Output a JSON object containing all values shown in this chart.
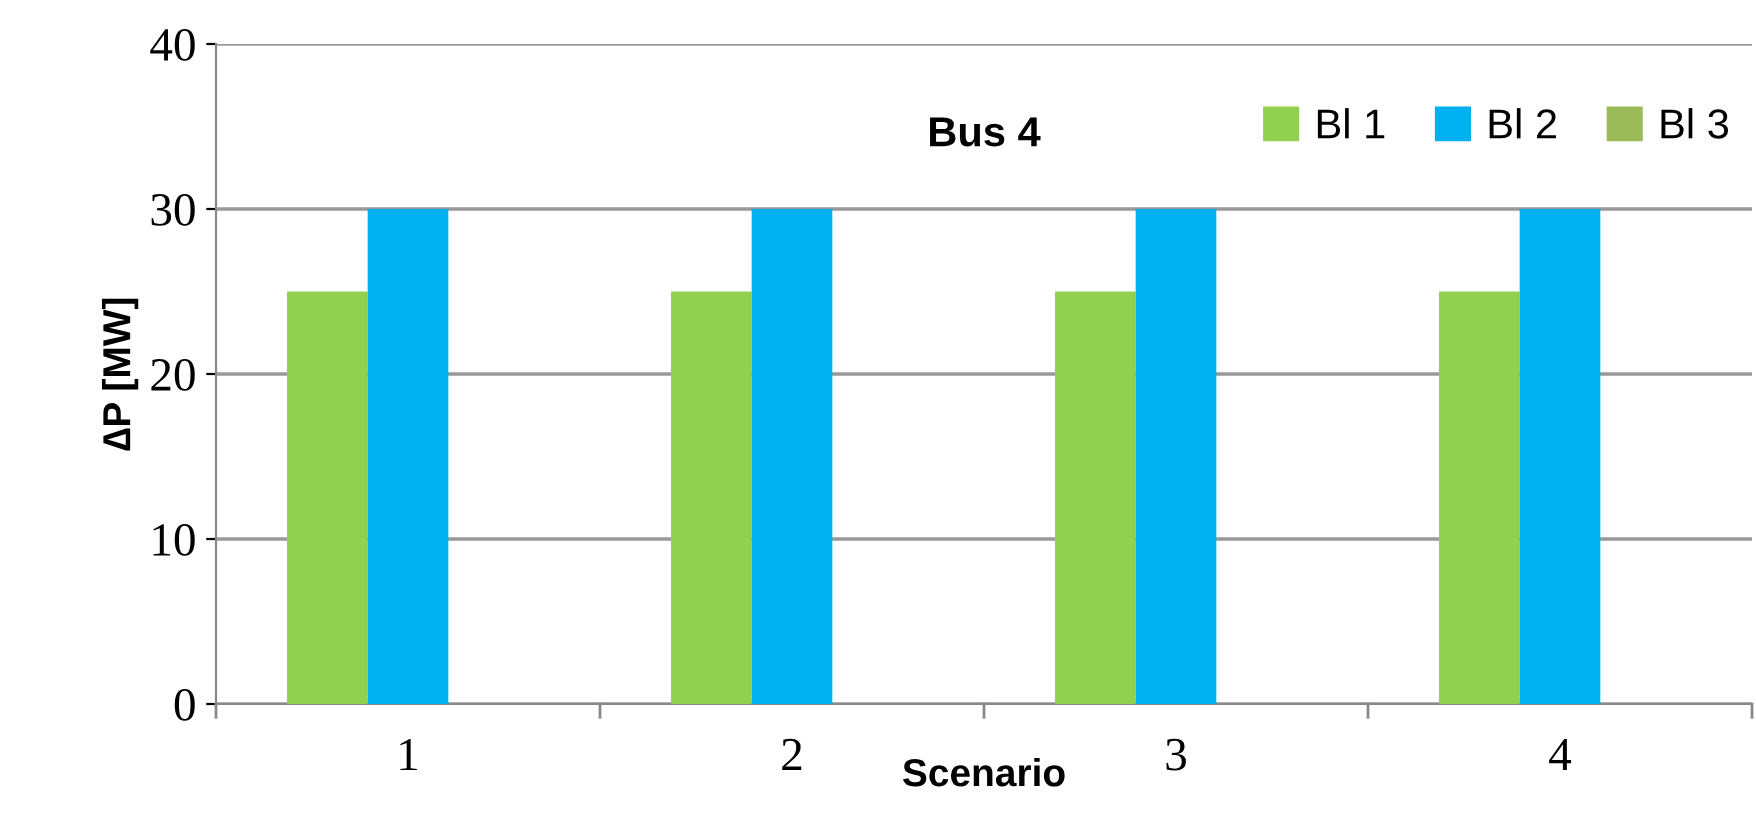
{
  "chart_data": {
    "type": "bar",
    "title": "Bus 4",
    "xlabel": "Scenario",
    "ylabel": "∆P [MW]",
    "categories": [
      "1",
      "2",
      "3",
      "4"
    ],
    "series": [
      {
        "name": "Bl 1",
        "color": "#92d050",
        "values": [
          25,
          25,
          25,
          25
        ]
      },
      {
        "name": "Bl 2",
        "color": "#00b0f0",
        "values": [
          30,
          30,
          30,
          30
        ]
      },
      {
        "name": "Bl 3",
        "color": "#9bbb59",
        "values": [
          0,
          0,
          0,
          0
        ]
      }
    ],
    "ylim": [
      0,
      40
    ],
    "yticks": [
      0,
      10,
      20,
      30,
      40
    ],
    "grid": "y",
    "legend": "top right"
  }
}
